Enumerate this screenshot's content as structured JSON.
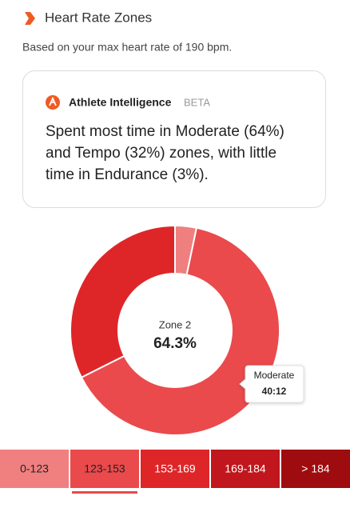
{
  "header": {
    "title": "Heart Rate Zones",
    "subtitle": "Based on your max heart rate of 190 bpm."
  },
  "insight": {
    "title": "Athlete Intelligence",
    "badge": "BETA",
    "lines": [
      "Spent most time in Moderate (64%)",
      "and Tempo (32%) zones, with little",
      "time in Endurance (3%)."
    ]
  },
  "chart_data": {
    "type": "donut",
    "categories": [
      "0-123",
      "123-153",
      "153-169",
      "169-184",
      "> 184"
    ],
    "values": [
      3.3,
      64.3,
      32.4,
      0,
      0
    ],
    "value_labels": [
      null,
      "64.3%",
      null,
      null,
      null
    ],
    "colors": [
      "#f07f80",
      "#ea4a4c",
      "#de2629",
      "#c1161d",
      "#9e0c10"
    ],
    "center_label": "Zone 2",
    "tooltip": {
      "title": "Moderate",
      "value": "40:12"
    }
  }
}
